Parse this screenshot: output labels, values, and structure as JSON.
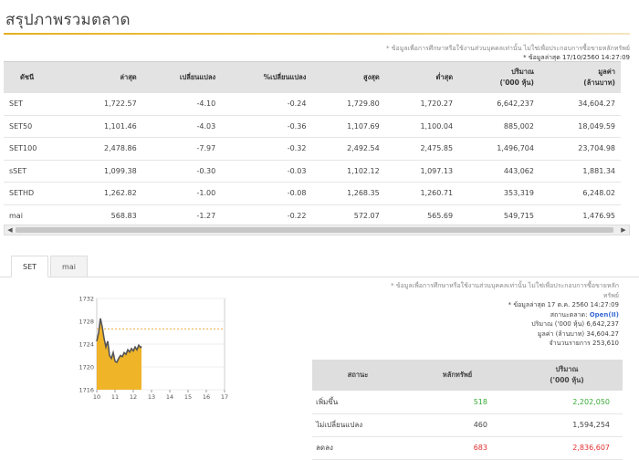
{
  "page_title": "สรุปภาพรวมตลาด",
  "note_top": "* ข้อมูลเพื่อการศึกษาหรือใช้งานส่วนบุคคลเท่านั้น ไม่ใช่เพื่อประกอบการซื้อขายหลักทรัพย์",
  "updated_top": "* ข้อมูลล่าสุด 17/10/2560 14:27:09",
  "table": {
    "headers": {
      "index": "ดัชนี",
      "last": "ล่าสุด",
      "change": "เปลี่ยนแปลง",
      "pct_change": "%เปลี่ยนแปลง",
      "high": "สูงสุด",
      "low": "ต่ำสุด",
      "volume_l1": "ปริมาณ",
      "volume_l2": "('000 หุ้น)",
      "value_l1": "มูลค่า",
      "value_l2": "(ล้านบาท)"
    },
    "rows": [
      {
        "index": "SET",
        "last": "1,722.57",
        "change": "-4.10",
        "pct": "-0.24",
        "high": "1,729.80",
        "low": "1,720.27",
        "volume": "6,642,237",
        "value": "34,604.27"
      },
      {
        "index": "SET50",
        "last": "1,101.46",
        "change": "-4.03",
        "pct": "-0.36",
        "high": "1,107.69",
        "low": "1,100.04",
        "volume": "885,002",
        "value": "18,049.59"
      },
      {
        "index": "SET100",
        "last": "2,478.86",
        "change": "-7.97",
        "pct": "-0.32",
        "high": "2,492.54",
        "low": "2,475.85",
        "volume": "1,496,704",
        "value": "23,704.98"
      },
      {
        "index": "sSET",
        "last": "1,099.38",
        "change": "-0.30",
        "pct": "-0.03",
        "high": "1,102.12",
        "low": "1,097.13",
        "volume": "443,062",
        "value": "1,881.34"
      },
      {
        "index": "SETHD",
        "last": "1,262.82",
        "change": "-1.00",
        "pct": "-0.08",
        "high": "1,268.35",
        "low": "1,260.71",
        "volume": "353,319",
        "value": "6,248.02"
      },
      {
        "index": "mai",
        "last": "568.83",
        "change": "-1.27",
        "pct": "-0.22",
        "high": "572.07",
        "low": "565.69",
        "volume": "549,715",
        "value": "1,476.95"
      }
    ]
  },
  "tabs": [
    "SET",
    "mai"
  ],
  "active_tab": "SET",
  "info": {
    "note": "* ข้อมูลเพื่อการศึกษาหรือใช้งานส่วนบุคคลเท่านั้น ไม่ใช่เพื่อประกอบการซื้อขายหลัก",
    "note_cont": "ทรัพย์",
    "updated": "* ข้อมูลล่าสุด 17 ต.ค. 2560 14:27:09",
    "status_label": "สถานะตลาด:",
    "status_value": "Open(II)",
    "volume_label": "ปริมาณ ('000 หุ้น)",
    "volume_value": "6,642,237",
    "value_label": "มูลค่า (ล้านบาท)",
    "value_value": "34,604.27",
    "trades_label": "จำนวนรายการ",
    "trades_value": "253,610"
  },
  "summary": {
    "headers": {
      "status": "สถานะ",
      "securities": "หลักทรัพย์",
      "volume_l1": "ปริมาณ",
      "volume_l2": "('000 หุ้น)"
    },
    "rows": [
      {
        "label": "เพิ่มขึ้น",
        "securities": "518",
        "volume": "2,202,050",
        "color": "green"
      },
      {
        "label": "ไม่เปลี่ยนแปลง",
        "securities": "460",
        "volume": "1,594,254",
        "color": "grey"
      },
      {
        "label": "ลดลง",
        "securities": "683",
        "volume": "2,836,607",
        "color": "red"
      }
    ]
  },
  "chart_data": {
    "type": "area",
    "x_ticks": [
      "10",
      "11",
      "12",
      "13",
      "14",
      "15",
      "16",
      "17"
    ],
    "y_ticks": [
      "1732",
      "1728",
      "1724",
      "1720",
      "1716"
    ],
    "ylim": [
      1716,
      1732
    ],
    "xlim": [
      10,
      17
    ],
    "previous_close": 1726.67,
    "x": [
      10.0,
      10.1,
      10.2,
      10.3,
      10.4,
      10.5,
      10.6,
      10.7,
      10.8,
      10.9,
      11.0,
      11.1,
      11.2,
      11.3,
      11.4,
      11.5,
      11.6,
      11.7,
      11.8,
      11.9,
      12.0,
      12.1,
      12.2,
      12.3,
      12.4,
      12.45
    ],
    "y": [
      1724.5,
      1726.0,
      1728.5,
      1727.0,
      1725.0,
      1723.5,
      1724.5,
      1722.0,
      1721.5,
      1722.5,
      1721.0,
      1720.8,
      1721.5,
      1722.0,
      1721.8,
      1722.5,
      1722.2,
      1723.0,
      1722.6,
      1723.2,
      1722.8,
      1723.5,
      1723.0,
      1723.8,
      1723.4,
      1723.6
    ],
    "fill_color": "#f0b429",
    "line_color": "#555555"
  }
}
